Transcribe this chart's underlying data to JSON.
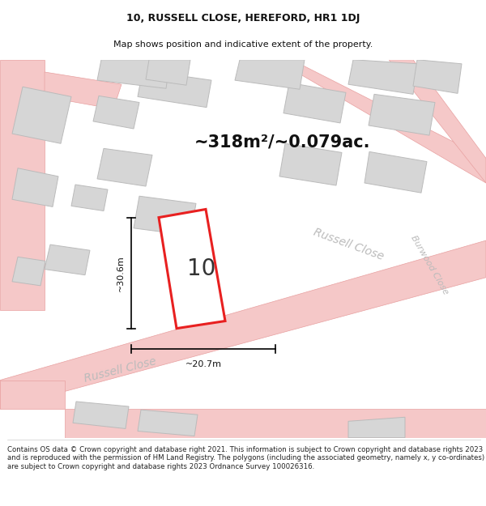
{
  "title_line1": "10, RUSSELL CLOSE, HEREFORD, HR1 1DJ",
  "title_line2": "Map shows position and indicative extent of the property.",
  "area_text": "~318m²/~0.079ac.",
  "property_number": "10",
  "dim_height": "~30.6m",
  "dim_width": "~20.7m",
  "footer_text": "Contains OS data © Crown copyright and database right 2021. This information is subject to Crown copyright and database rights 2023 and is reproduced with the permission of HM Land Registry. The polygons (including the associated geometry, namely x, y co-ordinates) are subject to Crown copyright and database rights 2023 Ordnance Survey 100026316.",
  "map_bg": "#f7f6f5",
  "road_color": "#f5c8c8",
  "road_edge_color": "#e8a0a0",
  "building_color": "#d6d6d6",
  "building_edge_color": "#bbbbbb",
  "plot_color": "#e82020",
  "plot_fill": "#ffffff",
  "street_label_color": "#bbbbbb",
  "title_color": "#111111",
  "footer_color": "#222222",
  "title_fontsize": 9,
  "subtitle_fontsize": 8,
  "area_fontsize": 15,
  "dim_fontsize": 8,
  "street_fontsize": 10,
  "footer_fontsize": 6.2
}
